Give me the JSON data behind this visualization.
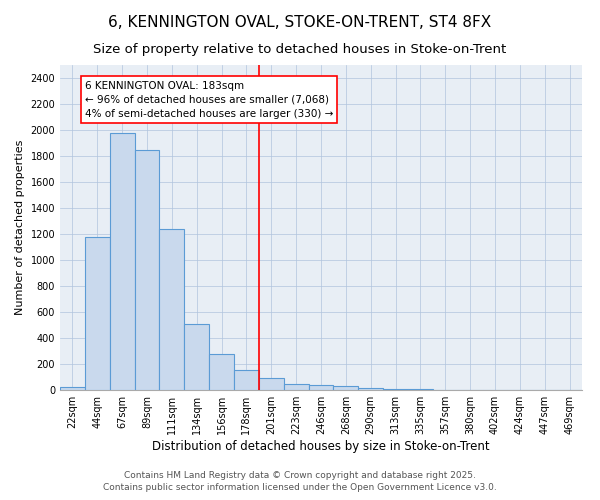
{
  "title": "6, KENNINGTON OVAL, STOKE-ON-TRENT, ST4 8FX",
  "subtitle": "Size of property relative to detached houses in Stoke-on-Trent",
  "xlabel": "Distribution of detached houses by size in Stoke-on-Trent",
  "ylabel": "Number of detached properties",
  "categories": [
    "22sqm",
    "44sqm",
    "67sqm",
    "89sqm",
    "111sqm",
    "134sqm",
    "156sqm",
    "178sqm",
    "201sqm",
    "223sqm",
    "246sqm",
    "268sqm",
    "290sqm",
    "313sqm",
    "335sqm",
    "357sqm",
    "380sqm",
    "402sqm",
    "424sqm",
    "447sqm",
    "469sqm"
  ],
  "values": [
    25,
    1175,
    1975,
    1850,
    1240,
    510,
    275,
    155,
    90,
    50,
    35,
    30,
    15,
    8,
    5,
    3,
    2,
    2,
    1,
    1,
    1
  ],
  "bar_color": "#c9d9ed",
  "bar_edge_color": "#5b9bd5",
  "bar_linewidth": 0.8,
  "vline_color": "red",
  "vline_linewidth": 1.2,
  "vline_position": 7.5,
  "annotation_text": "6 KENNINGTON OVAL: 183sqm\n← 96% of detached houses are smaller (7,068)\n4% of semi-detached houses are larger (330) →",
  "annotation_box_color": "white",
  "annotation_box_edgecolor": "red",
  "ylim": [
    0,
    2500
  ],
  "yticks": [
    0,
    200,
    400,
    600,
    800,
    1000,
    1200,
    1400,
    1600,
    1800,
    2000,
    2200,
    2400
  ],
  "grid_color": "#b0c4de",
  "grid_linewidth": 0.5,
  "background_color": "#e8eef5",
  "footer1": "Contains HM Land Registry data © Crown copyright and database right 2025.",
  "footer2": "Contains public sector information licensed under the Open Government Licence v3.0.",
  "title_fontsize": 11,
  "subtitle_fontsize": 9.5,
  "xlabel_fontsize": 8.5,
  "ylabel_fontsize": 8,
  "tick_fontsize": 7,
  "annotation_fontsize": 7.5,
  "footer_fontsize": 6.5
}
